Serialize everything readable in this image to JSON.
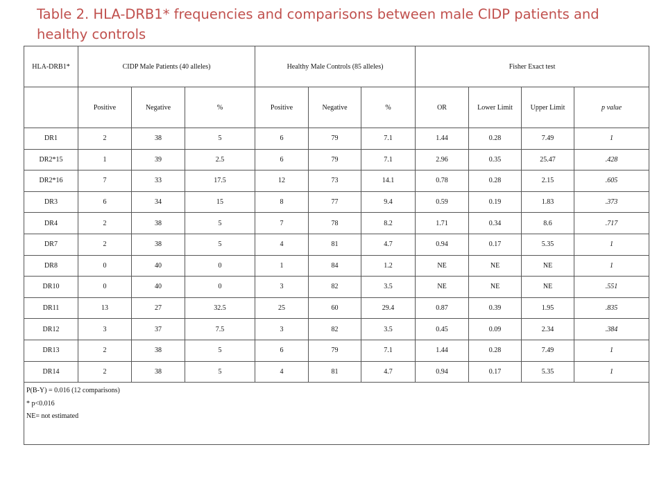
{
  "title": "Table 2. HLA-DRB1* frequencies and comparisons between male CIDP patients and healthy controls",
  "header": {
    "hla": "HLA-DRB1*",
    "cidp": "CIDP Male Patients (40 alleles)",
    "controls": "Healthy Male Controls (85 alleles)",
    "fisher": "Fisher Exact test"
  },
  "subheader": {
    "cidp_pos": "Positive",
    "cidp_neg": "Negative",
    "cidp_pct": "%",
    "ctrl_pos": "Positive",
    "ctrl_neg": "Negative",
    "ctrl_pct": "%",
    "or": "OR",
    "lower": "Lower Limit",
    "upper": "Upper Limit",
    "pvalue": "p value"
  },
  "rows": [
    {
      "allele": "DR1",
      "cidp_pos": "2",
      "cidp_neg": "38",
      "cidp_pct": "5",
      "ctrl_pos": "6",
      "ctrl_neg": "79",
      "ctrl_pct": "7.1",
      "or": "1.44",
      "lower": "0.28",
      "upper": "7.49",
      "p": "1"
    },
    {
      "allele": "DR2*15",
      "cidp_pos": "1",
      "cidp_neg": "39",
      "cidp_pct": "2.5",
      "ctrl_pos": "6",
      "ctrl_neg": "79",
      "ctrl_pct": "7.1",
      "or": "2.96",
      "lower": "0.35",
      "upper": "25.47",
      "p": ".428"
    },
    {
      "allele": "DR2*16",
      "cidp_pos": "7",
      "cidp_neg": "33",
      "cidp_pct": "17.5",
      "ctrl_pos": "12",
      "ctrl_neg": "73",
      "ctrl_pct": "14.1",
      "or": "0.78",
      "lower": "0.28",
      "upper": "2.15",
      "p": ".605"
    },
    {
      "allele": "DR3",
      "cidp_pos": "6",
      "cidp_neg": "34",
      "cidp_pct": "15",
      "ctrl_pos": "8",
      "ctrl_neg": "77",
      "ctrl_pct": "9.4",
      "or": "0.59",
      "lower": "0.19",
      "upper": "1.83",
      "p": ".373"
    },
    {
      "allele": "DR4",
      "cidp_pos": "2",
      "cidp_neg": "38",
      "cidp_pct": "5",
      "ctrl_pos": "7",
      "ctrl_neg": "78",
      "ctrl_pct": "8.2",
      "or": "1.71",
      "lower": "0.34",
      "upper": "8.6",
      "p": ".717"
    },
    {
      "allele": "DR7",
      "cidp_pos": "2",
      "cidp_neg": "38",
      "cidp_pct": "5",
      "ctrl_pos": "4",
      "ctrl_neg": "81",
      "ctrl_pct": "4.7",
      "or": "0.94",
      "lower": "0.17",
      "upper": "5.35",
      "p": "1"
    },
    {
      "allele": "DR8",
      "cidp_pos": "0",
      "cidp_neg": "40",
      "cidp_pct": "0",
      "ctrl_pos": "1",
      "ctrl_neg": "84",
      "ctrl_pct": "1.2",
      "or": "NE",
      "lower": "NE",
      "upper": "NE",
      "p": "1"
    },
    {
      "allele": "DR10",
      "cidp_pos": "0",
      "cidp_neg": "40",
      "cidp_pct": "0",
      "ctrl_pos": "3",
      "ctrl_neg": "82",
      "ctrl_pct": "3.5",
      "or": "NE",
      "lower": "NE",
      "upper": "NE",
      "p": ".551"
    },
    {
      "allele": "DR11",
      "cidp_pos": "13",
      "cidp_neg": "27",
      "cidp_pct": "32.5",
      "ctrl_pos": "25",
      "ctrl_neg": "60",
      "ctrl_pct": "29.4",
      "or": "0.87",
      "lower": "0.39",
      "upper": "1.95",
      "p": ".835"
    },
    {
      "allele": "DR12",
      "cidp_pos": "3",
      "cidp_neg": "37",
      "cidp_pct": "7.5",
      "ctrl_pos": "3",
      "ctrl_neg": "82",
      "ctrl_pct": "3.5",
      "or": "0.45",
      "lower": "0.09",
      "upper": "2.34",
      "p": ".384"
    },
    {
      "allele": "DR13",
      "cidp_pos": "2",
      "cidp_neg": "38",
      "cidp_pct": "5",
      "ctrl_pos": "6",
      "ctrl_neg": "79",
      "ctrl_pct": "7.1",
      "or": "1.44",
      "lower": "0.28",
      "upper": "7.49",
      "p": "1"
    },
    {
      "allele": "DR14",
      "cidp_pos": "2",
      "cidp_neg": "38",
      "cidp_pct": "5",
      "ctrl_pos": "4",
      "ctrl_neg": "81",
      "ctrl_pct": "4.7",
      "or": "0.94",
      "lower": "0.17",
      "upper": "5.35",
      "p": "1"
    }
  ],
  "footnotes": [
    "P(B-Y) = 0.016 (12 comparisons)",
    "* p<0.016",
    "NE= not estimated"
  ],
  "colors": {
    "title": "#c0504d",
    "border": "#555555",
    "text": "#111111"
  }
}
